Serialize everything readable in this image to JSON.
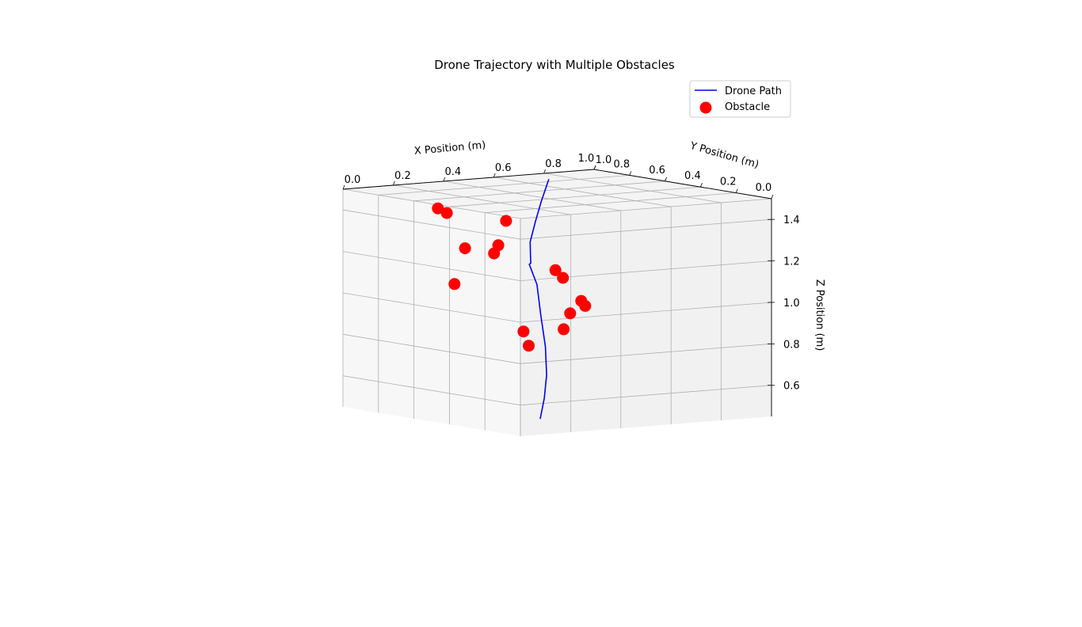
{
  "chart_data": {
    "type": "scatter",
    "title": "Drone Trajectory with Multiple Obstacles",
    "xlabel": "X Position (m)",
    "ylabel": "Y Position (m)",
    "zlabel": "Z Position (m)",
    "xlim": [
      0,
      1
    ],
    "ylim": [
      0,
      1
    ],
    "zlim": [
      0.45,
      1.5
    ],
    "x_ticks": [
      "0.0",
      "0.2",
      "0.4",
      "0.6",
      "0.8",
      "1.0"
    ],
    "y_ticks": [
      "0.0",
      "0.2",
      "0.4",
      "0.6",
      "0.8",
      "1.0"
    ],
    "z_ticks": [
      "0.6",
      "0.8",
      "1.0",
      "1.2",
      "1.4"
    ],
    "grid": true,
    "legend_position": "top-right",
    "series": [
      {
        "name": "Drone Path",
        "kind": "line",
        "color": "#0000ff",
        "x": [
          0.03,
          0.12,
          0.22,
          0.34,
          0.48,
          0.6,
          0.7,
          0.72,
          0.75,
          0.78,
          0.85,
          0.93,
          1.0
        ],
        "y": [
          0.1,
          0.18,
          0.26,
          0.34,
          0.42,
          0.49,
          0.53,
          0.55,
          0.57,
          0.59,
          0.66,
          0.74,
          0.82
        ],
        "z": [
          0.52,
          0.6,
          0.69,
          0.8,
          0.93,
          1.05,
          1.13,
          1.13,
          1.16,
          1.22,
          1.3,
          1.38,
          1.47
        ]
      },
      {
        "name": "Obstacle",
        "kind": "scatter",
        "color": "#ff0000",
        "points": [
          [
            0.72,
            0.18,
            1.43
          ],
          [
            0.74,
            0.23,
            1.4
          ],
          [
            0.62,
            0.35,
            1.25
          ],
          [
            0.63,
            0.34,
            1.21
          ],
          [
            0.93,
            0.6,
            1.3
          ],
          [
            0.85,
            0.38,
            1.2
          ],
          [
            0.85,
            0.74,
            1.06
          ],
          [
            0.85,
            0.77,
            1.02
          ],
          [
            0.86,
            0.85,
            0.9
          ],
          [
            0.88,
            0.88,
            0.87
          ],
          [
            0.88,
            0.82,
            0.84
          ],
          [
            0.86,
            0.78,
            0.77
          ],
          [
            0.69,
            0.5,
            0.81
          ],
          [
            0.59,
            0.45,
            0.76
          ],
          [
            0.81,
            0.31,
            1.04
          ]
        ]
      }
    ]
  }
}
